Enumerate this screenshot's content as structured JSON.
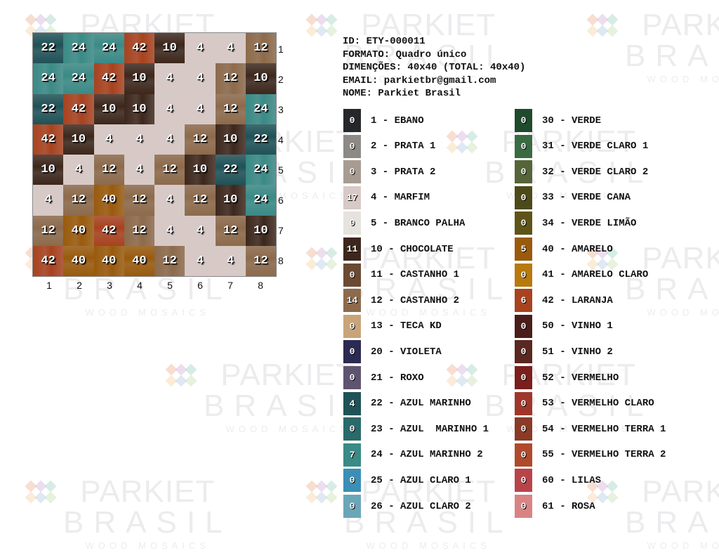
{
  "watermark": {
    "line1": "PARKIET",
    "line2": "BRASIL",
    "line3": "WOOD MOSAICS"
  },
  "info": {
    "id": "ID: ETY-000011",
    "formato": "FORMATO: Quadro único",
    "dimensoes": "DIMENÇÕES: 40x40 (TOTAL: 40x40)",
    "email": "EMAIL: parkietbr@gmail.com",
    "nome": "NOME: Parkiet Brasil"
  },
  "grid": {
    "row_labels": [
      "1",
      "2",
      "3",
      "4",
      "5",
      "6",
      "7",
      "8"
    ],
    "col_labels": [
      "1",
      "2",
      "3",
      "4",
      "5",
      "6",
      "7",
      "8"
    ],
    "rows": [
      [
        22,
        24,
        24,
        42,
        10,
        4,
        4,
        12
      ],
      [
        24,
        24,
        42,
        10,
        4,
        4,
        12,
        10
      ],
      [
        22,
        42,
        10,
        10,
        4,
        4,
        12,
        24
      ],
      [
        42,
        10,
        4,
        4,
        4,
        12,
        10,
        22
      ],
      [
        10,
        4,
        12,
        4,
        12,
        10,
        22,
        24
      ],
      [
        4,
        12,
        40,
        12,
        4,
        12,
        10,
        24
      ],
      [
        12,
        40,
        42,
        12,
        4,
        4,
        12,
        10
      ],
      [
        42,
        40,
        40,
        40,
        12,
        4,
        4,
        12
      ]
    ]
  },
  "legend": [
    {
      "code": 1,
      "count": "0",
      "label": "1 - EBANO",
      "color": "#26272b"
    },
    {
      "code": 2,
      "count": "0",
      "label": "2 - PRATA 1",
      "color": "#8d8a86"
    },
    {
      "code": 3,
      "count": "0",
      "label": "3 - PRATA 2",
      "color": "#a89c92"
    },
    {
      "code": 4,
      "count": "17",
      "label": "4 - MARFIM",
      "color": "#d8c9c6"
    },
    {
      "code": 5,
      "count": "0",
      "label": "5 - BRANCO PALHA",
      "color": "#e6e3df"
    },
    {
      "code": 10,
      "count": "11",
      "label": "10 - CHOCOLATE",
      "color": "#3d271c"
    },
    {
      "code": 11,
      "count": "0",
      "label": "11 - CASTANHO 1",
      "color": "#6b4a33"
    },
    {
      "code": 12,
      "count": "14",
      "label": "12 - CASTANHO 2",
      "color": "#8d6a4b"
    },
    {
      "code": 13,
      "count": "0",
      "label": "13 - TECA KD",
      "color": "#c9a479"
    },
    {
      "code": 20,
      "count": "0",
      "label": "20 - VIOLETA",
      "color": "#2b2a52"
    },
    {
      "code": 21,
      "count": "0",
      "label": "21 - ROXO",
      "color": "#5f5470"
    },
    {
      "code": 22,
      "count": "4",
      "label": "22 - AZUL MARINHO",
      "color": "#1f5257"
    },
    {
      "code": 23,
      "count": "0",
      "label": "23 - AZUL  MARINHO 1",
      "color": "#2a6a6a"
    },
    {
      "code": 24,
      "count": "7",
      "label": "24 - AZUL MARINHO 2",
      "color": "#3a8a86"
    },
    {
      "code": 25,
      "count": "0",
      "label": "25 - AZUL CLARO 1",
      "color": "#3b8fb5"
    },
    {
      "code": 26,
      "count": "0",
      "label": "26 - AZUL CLARO 2",
      "color": "#6aa6b8"
    },
    {
      "code": 30,
      "count": "0",
      "label": "30 - VERDE",
      "color": "#1f4a2c"
    },
    {
      "code": 31,
      "count": "0",
      "label": "31 - VERDE CLARO 1",
      "color": "#3a6a42"
    },
    {
      "code": 32,
      "count": "0",
      "label": "32 - VERDE CLARO 2",
      "color": "#56643a"
    },
    {
      "code": 33,
      "count": "0",
      "label": "33 - VERDE CANA",
      "color": "#4d4a1a"
    },
    {
      "code": 34,
      "count": "0",
      "label": "34 - VERDE LIMÃO",
      "color": "#5e5418"
    },
    {
      "code": 40,
      "count": "5",
      "label": "40 - AMARELO",
      "color": "#9a5a0c"
    },
    {
      "code": 41,
      "count": "0",
      "label": "41 - AMARELO CLARO",
      "color": "#b8790f"
    },
    {
      "code": 42,
      "count": "6",
      "label": "42 - LARANJA",
      "color": "#a8421f"
    },
    {
      "code": 50,
      "count": "0",
      "label": "50 - VINHO 1",
      "color": "#4a1d1a"
    },
    {
      "code": 51,
      "count": "0",
      "label": "51 - VINHO 2",
      "color": "#5a2820"
    },
    {
      "code": 52,
      "count": "0",
      "label": "52 - VERMELHO",
      "color": "#7a1f1c"
    },
    {
      "code": 53,
      "count": "0",
      "label": "53 - VERMELHO CLARO",
      "color": "#a0362a"
    },
    {
      "code": 54,
      "count": "0",
      "label": "54 - VERMELHO TERRA 1",
      "color": "#8a3a26"
    },
    {
      "code": 55,
      "count": "0",
      "label": "55 - VERMELHO TERRA 2",
      "color": "#b04a2c"
    },
    {
      "code": 60,
      "count": "0",
      "label": "60 - LILAS",
      "color": "#b8444a"
    },
    {
      "code": 61,
      "count": "0",
      "label": "61 - ROSA",
      "color": "#d88484"
    }
  ]
}
